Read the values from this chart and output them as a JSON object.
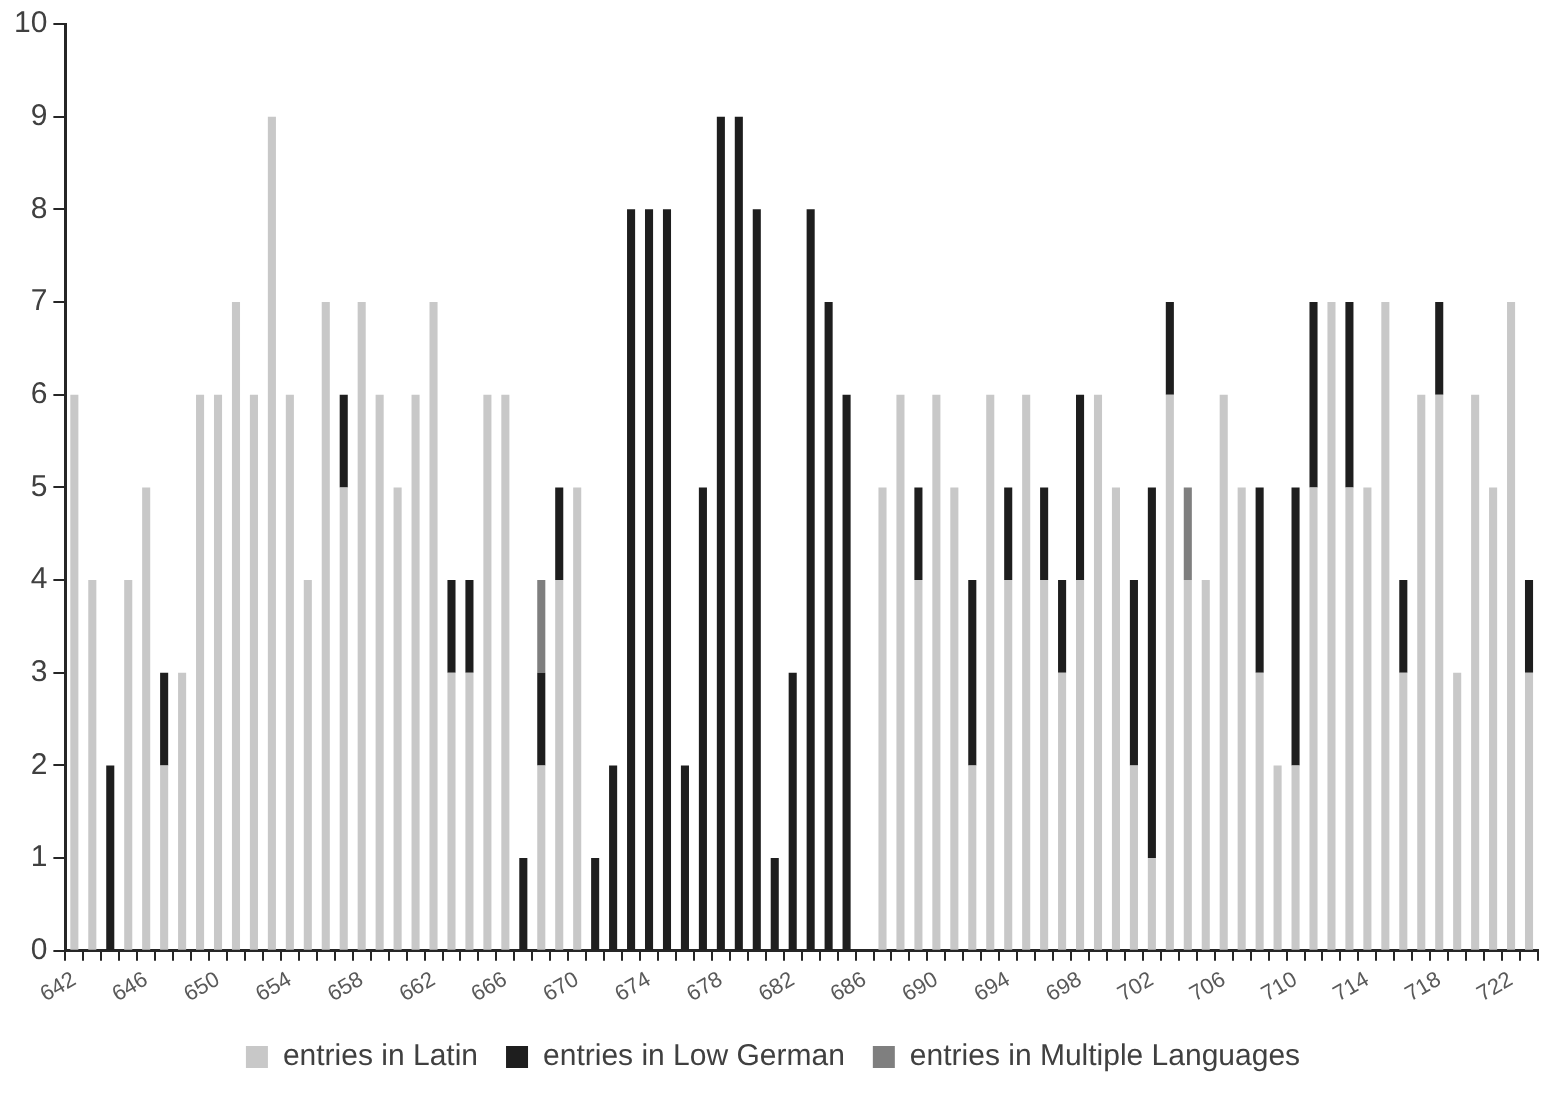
{
  "chart_data": {
    "type": "bar",
    "stacked": true,
    "categories": [
      "642",
      null,
      null,
      null,
      "646",
      null,
      null,
      null,
      "650",
      null,
      null,
      null,
      "654",
      null,
      null,
      null,
      "658",
      null,
      null,
      null,
      "662",
      null,
      null,
      null,
      "666",
      null,
      null,
      null,
      "670",
      null,
      null,
      null,
      "674",
      null,
      null,
      null,
      "678",
      null,
      null,
      null,
      "682",
      null,
      null,
      null,
      "686",
      null,
      null,
      null,
      "690",
      null,
      null,
      null,
      "694",
      null,
      null,
      null,
      "698",
      null,
      null,
      null,
      "702",
      null,
      null,
      null,
      "706",
      null,
      null,
      null,
      "710",
      null,
      null,
      null,
      "714",
      null,
      null,
      null,
      "718",
      null,
      null,
      null,
      "722",
      null
    ],
    "ylim": [
      0,
      10
    ],
    "yticks": [
      0,
      1,
      2,
      3,
      4,
      5,
      6,
      7,
      8,
      9,
      10
    ],
    "grid": false,
    "legend": "bottom",
    "series": [
      {
        "name": "entries in Latin",
        "color": "#c8c8c8",
        "values": [
          6,
          4,
          null,
          4,
          5,
          2,
          3,
          6,
          6,
          7,
          6,
          9,
          6,
          4,
          7,
          5,
          7,
          6,
          5,
          6,
          7,
          3,
          3,
          6,
          6,
          null,
          2,
          4,
          5,
          null,
          null,
          null,
          null,
          null,
          null,
          null,
          null,
          null,
          null,
          null,
          null,
          null,
          null,
          null,
          null,
          5,
          6,
          4,
          6,
          5,
          2,
          6,
          4,
          6,
          4,
          3,
          4,
          6,
          5,
          2,
          1,
          6,
          4,
          4,
          6,
          5,
          3,
          2,
          2,
          5,
          7,
          5,
          5,
          7,
          3,
          6,
          6,
          3,
          6,
          5,
          7,
          3
        ]
      },
      {
        "name": "entries in Low German",
        "color": "#1e1e1e",
        "values": [
          null,
          null,
          2,
          null,
          null,
          1,
          null,
          null,
          null,
          null,
          null,
          null,
          null,
          null,
          null,
          1,
          null,
          null,
          null,
          null,
          null,
          1,
          1,
          null,
          null,
          1,
          1,
          1,
          null,
          1,
          2,
          8,
          8,
          8,
          2,
          5,
          9,
          9,
          8,
          1,
          3,
          8,
          7,
          6,
          null,
          null,
          null,
          1,
          null,
          null,
          2,
          null,
          1,
          null,
          1,
          1,
          2,
          null,
          null,
          2,
          4,
          1,
          null,
          null,
          null,
          null,
          2,
          null,
          3,
          2,
          null,
          2,
          null,
          null,
          1,
          null,
          1,
          null,
          null,
          null,
          null,
          1
        ]
      },
      {
        "name": "entries in Multiple Languages",
        "color": "#7f7f7f",
        "values": [
          null,
          null,
          null,
          null,
          null,
          null,
          null,
          null,
          null,
          null,
          null,
          null,
          null,
          null,
          null,
          null,
          null,
          null,
          null,
          null,
          null,
          null,
          null,
          null,
          null,
          null,
          1,
          null,
          null,
          null,
          null,
          null,
          null,
          null,
          null,
          null,
          null,
          null,
          null,
          null,
          null,
          null,
          null,
          null,
          null,
          null,
          null,
          null,
          null,
          null,
          null,
          null,
          null,
          null,
          null,
          null,
          null,
          null,
          null,
          null,
          null,
          null,
          1,
          null,
          null,
          null,
          null,
          null,
          null,
          null,
          null,
          null,
          null,
          null,
          null,
          null,
          null,
          null,
          null,
          null,
          null,
          null
        ]
      }
    ]
  }
}
